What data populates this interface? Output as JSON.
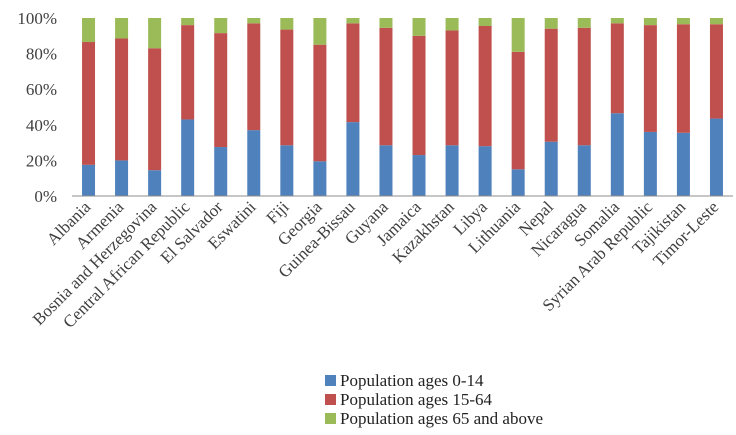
{
  "chart_data": {
    "type": "bar",
    "stacked": true,
    "percent": true,
    "categories": [
      "Albania",
      "Armenia",
      "Bosnia and Herzegovina",
      "Central African Republic",
      "El Salvador",
      "Eswatini",
      "Fiji",
      "Georgia",
      "Guinea-Bissau",
      "Guyana",
      "Jamaica",
      "Kazakhstan",
      "Libya",
      "Lithuania",
      "Nepal",
      "Nicaragua",
      "Somalia",
      "Syrian Arab Republic",
      "Tajikistan",
      "Timor-Leste"
    ],
    "series": [
      {
        "name": "Population ages 0-14",
        "color": "#4f81bd",
        "values": [
          17.5,
          20,
          14.5,
          43,
          27.5,
          37,
          28.5,
          19.5,
          41.5,
          28.5,
          23,
          28.5,
          28,
          15,
          30.5,
          28.5,
          46.5,
          36,
          35.5,
          43.5
        ]
      },
      {
        "name": "Population ages 15-64",
        "color": "#c0504d",
        "values": [
          69,
          68.5,
          68.5,
          53,
          64,
          60,
          65,
          65.5,
          55.5,
          66,
          67,
          64.5,
          67.5,
          66,
          63.5,
          66,
          50.5,
          60,
          61,
          53
        ]
      },
      {
        "name": "Population ages 65 and above",
        "color": "#9bbb59",
        "values": [
          13.5,
          11.5,
          17,
          4,
          8.5,
          3,
          6.5,
          15,
          3,
          5.5,
          10,
          7,
          4.5,
          19,
          6,
          5.5,
          3,
          4,
          3.5,
          3.5
        ]
      }
    ],
    "y_ticks": [
      "0%",
      "20%",
      "40%",
      "60%",
      "80%",
      "100%"
    ],
    "ylim": [
      0,
      100
    ],
    "grid": false,
    "legend_position": "bottom"
  }
}
